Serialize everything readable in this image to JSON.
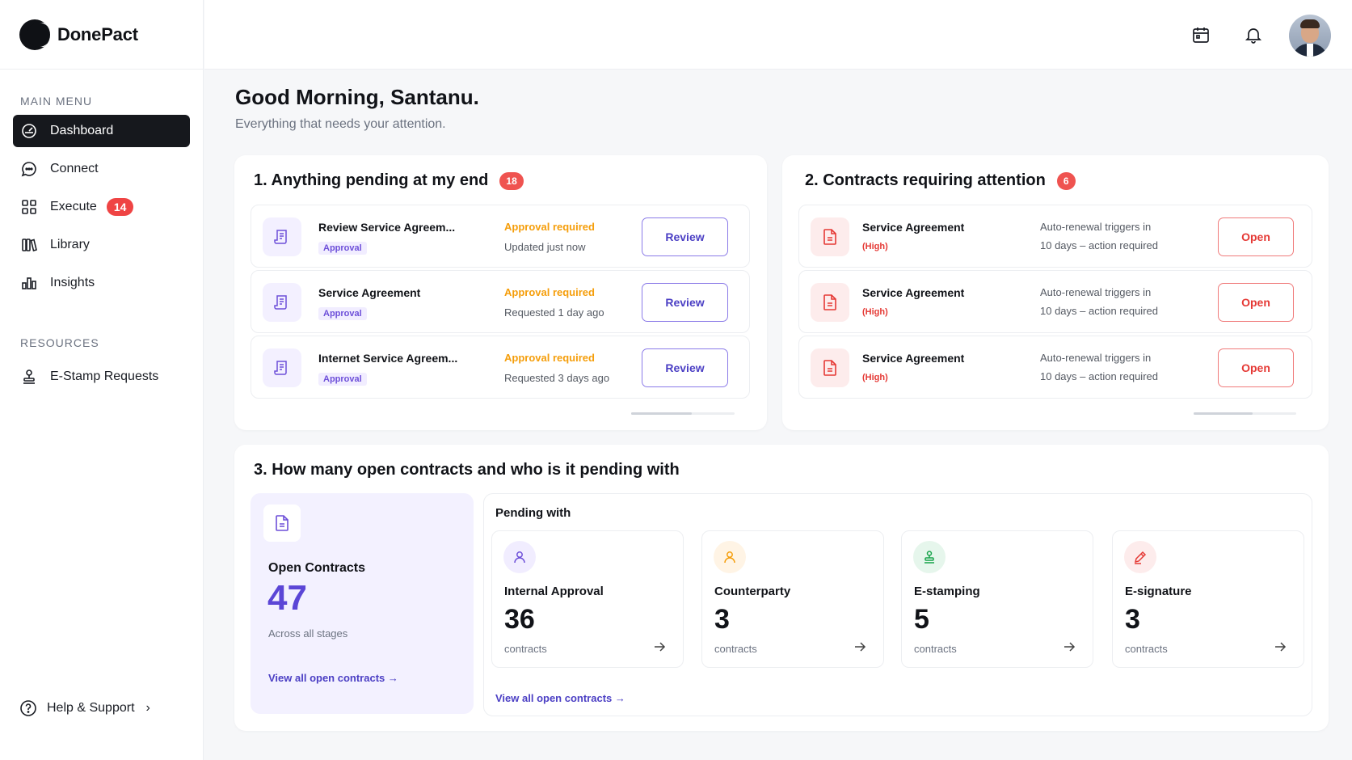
{
  "brand": {
    "name": "DonePact"
  },
  "sidebar": {
    "main_menu_label": "MAIN MENU",
    "items": [
      {
        "label": "Dashboard",
        "icon": "dashboard-icon",
        "active": true
      },
      {
        "label": "Connect",
        "icon": "chat-icon"
      },
      {
        "label": "Execute",
        "icon": "grid-icon",
        "badge": "14"
      },
      {
        "label": "Library",
        "icon": "library-icon"
      },
      {
        "label": "Insights",
        "icon": "chart-icon"
      }
    ],
    "resources_label": "RESOURCES",
    "resources": [
      {
        "label": "E-Stamp Requests",
        "icon": "stamp-icon"
      }
    ],
    "help_label": "Help & Support"
  },
  "header": {
    "greeting": "Good Morning, Santanu.",
    "subtitle": "Everything that needs your attention."
  },
  "pending": {
    "title": "1. Anything pending at my end",
    "count": "18",
    "rows": [
      {
        "title": "Review Service Agreem...",
        "tag": "Approval",
        "status": "Approval required",
        "time": "Updated just now",
        "action": "Review"
      },
      {
        "title": "Service Agreement",
        "tag": "Approval",
        "status": "Approval required",
        "time": "Requested 1 day ago",
        "action": "Review"
      },
      {
        "title": "Internet Service Agreem...",
        "tag": "Approval",
        "status": "Approval required",
        "time": "Requested 3 days ago",
        "action": "Review"
      }
    ]
  },
  "attention": {
    "title": "2. Contracts requiring attention",
    "count": "6",
    "rows": [
      {
        "title": "Service Agreement",
        "priority": "(High)",
        "line1": "Auto-renewal triggers in",
        "line2": "10 days – action required",
        "action": "Open"
      },
      {
        "title": "Service Agreement",
        "priority": "(High)",
        "line1": "Auto-renewal triggers in",
        "line2": "10 days – action required",
        "action": "Open"
      },
      {
        "title": "Service Agreement",
        "priority": "(High)",
        "line1": "Auto-renewal triggers in",
        "line2": "10 days – action required",
        "action": "Open"
      }
    ]
  },
  "open_contracts": {
    "title": "3. How many open contracts and who is it pending with",
    "label": "Open Contracts",
    "count": "47",
    "hint": "Across all stages",
    "link": "View all open contracts",
    "pending_title": "Pending with",
    "pending_link": "View all open contracts",
    "tiles": [
      {
        "label": "Internal Approval",
        "count": "36",
        "unit": "contracts",
        "icon": "user-icon",
        "color": "#6d4fd9"
      },
      {
        "label": "Counterparty",
        "count": "3",
        "unit": "contracts",
        "icon": "user-icon",
        "color": "#f59e0b"
      },
      {
        "label": "E-stamping",
        "count": "5",
        "unit": "contracts",
        "icon": "stamp-icon",
        "color": "#16a34a"
      },
      {
        "label": "E-signature",
        "count": "3",
        "unit": "contracts",
        "icon": "pen-icon",
        "color": "#e53935"
      }
    ]
  },
  "colors": {
    "accent": "#5b46d6",
    "danger": "#ef5350",
    "warning": "#f59e0b",
    "sidebar_active": "#16181d"
  }
}
